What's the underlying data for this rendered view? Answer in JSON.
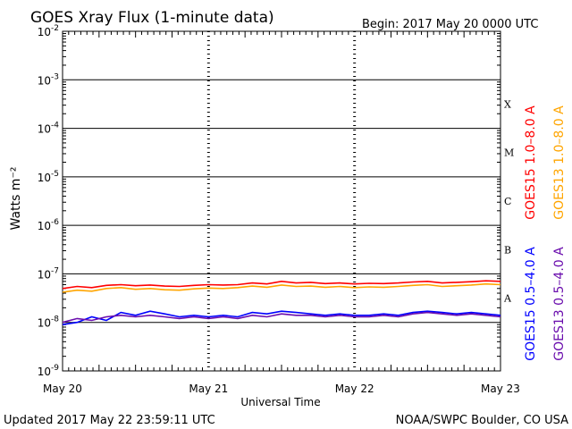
{
  "header": {
    "title": "GOES Xray Flux (1-minute data)",
    "begin": "Begin:  2017 May 20 0000 UTC"
  },
  "footer": {
    "updated": "Updated 2017 May 22 23:59:11 UTC",
    "credit": "NOAA/SWPC Boulder, CO USA"
  },
  "chart_data": {
    "type": "line",
    "xlabel": "Universal Time",
    "ylabel": "Watts m⁻²",
    "x_ticks": [
      "May 20",
      "May 21",
      "May 22",
      "May 23"
    ],
    "y_scale": "log",
    "ylim": [
      1e-09,
      0.01
    ],
    "y_ticks": [
      {
        "base": "10",
        "exp": "-2",
        "value": 0.01
      },
      {
        "base": "10",
        "exp": "-3",
        "value": 0.001
      },
      {
        "base": "10",
        "exp": "-4",
        "value": 0.0001
      },
      {
        "base": "10",
        "exp": "-5",
        "value": 1e-05
      },
      {
        "base": "10",
        "exp": "-6",
        "value": 1e-06
      },
      {
        "base": "10",
        "exp": "-7",
        "value": 1e-07
      },
      {
        "base": "10",
        "exp": "-8",
        "value": 1e-08
      },
      {
        "base": "10",
        "exp": "-9",
        "value": 1e-09
      }
    ],
    "flare_classes": [
      {
        "label": "X",
        "value": 0.0001
      },
      {
        "label": "M",
        "value": 1e-05
      },
      {
        "label": "C",
        "value": 1e-06
      },
      {
        "label": "B",
        "value": 1e-07
      },
      {
        "label": "A",
        "value": 1e-08
      }
    ],
    "series": [
      {
        "name": "GOES15 1.0–8.0 A",
        "color": "#ff0000",
        "x": [
          0,
          0.1,
          0.2,
          0.3,
          0.4,
          0.5,
          0.6,
          0.7,
          0.8,
          0.9,
          1.0,
          1.1,
          1.2,
          1.3,
          1.4,
          1.5,
          1.6,
          1.7,
          1.8,
          1.9,
          2.0,
          2.1,
          2.2,
          2.3,
          2.4,
          2.5,
          2.6,
          2.7,
          2.8,
          2.9,
          3.0
        ],
        "y": [
          5e-08,
          5.5e-08,
          5.2e-08,
          5.8e-08,
          6e-08,
          5.7e-08,
          5.9e-08,
          5.6e-08,
          5.5e-08,
          5.8e-08,
          6e-08,
          5.9e-08,
          6e-08,
          6.5e-08,
          6.2e-08,
          7e-08,
          6.5e-08,
          6.7e-08,
          6.3e-08,
          6.5e-08,
          6.2e-08,
          6.4e-08,
          6.3e-08,
          6.5e-08,
          6.8e-08,
          7e-08,
          6.5e-08,
          6.7e-08,
          6.9e-08,
          7.2e-08,
          7e-08
        ]
      },
      {
        "name": "GOES13 1.0–8.0 A",
        "color": "#ffa500",
        "x": [
          0,
          0.1,
          0.2,
          0.3,
          0.4,
          0.5,
          0.6,
          0.7,
          0.8,
          0.9,
          1.0,
          1.1,
          1.2,
          1.3,
          1.4,
          1.5,
          1.6,
          1.7,
          1.8,
          1.9,
          2.0,
          2.1,
          2.2,
          2.3,
          2.4,
          2.5,
          2.6,
          2.7,
          2.8,
          2.9,
          3.0
        ],
        "y": [
          4.2e-08,
          4.6e-08,
          4.4e-08,
          5e-08,
          5.2e-08,
          4.8e-08,
          5e-08,
          4.7e-08,
          4.6e-08,
          4.9e-08,
          5.1e-08,
          5e-08,
          5.2e-08,
          5.6e-08,
          5.3e-08,
          5.9e-08,
          5.5e-08,
          5.6e-08,
          5.3e-08,
          5.5e-08,
          5.2e-08,
          5.4e-08,
          5.3e-08,
          5.5e-08,
          5.8e-08,
          6e-08,
          5.5e-08,
          5.7e-08,
          5.9e-08,
          6.2e-08,
          6e-08
        ]
      },
      {
        "name": "GOES15 0.5–4.0 A",
        "color": "#0000ff",
        "x": [
          0,
          0.1,
          0.2,
          0.3,
          0.4,
          0.5,
          0.6,
          0.7,
          0.8,
          0.9,
          1.0,
          1.1,
          1.2,
          1.3,
          1.4,
          1.5,
          1.6,
          1.7,
          1.8,
          1.9,
          2.0,
          2.1,
          2.2,
          2.3,
          2.4,
          2.5,
          2.6,
          2.7,
          2.8,
          2.9,
          3.0
        ],
        "y": [
          9e-09,
          1e-08,
          1.3e-08,
          1.1e-08,
          1.6e-08,
          1.4e-08,
          1.7e-08,
          1.5e-08,
          1.3e-08,
          1.4e-08,
          1.3e-08,
          1.4e-08,
          1.3e-08,
          1.6e-08,
          1.5e-08,
          1.7e-08,
          1.6e-08,
          1.5e-08,
          1.4e-08,
          1.5e-08,
          1.4e-08,
          1.4e-08,
          1.5e-08,
          1.4e-08,
          1.6e-08,
          1.7e-08,
          1.6e-08,
          1.5e-08,
          1.6e-08,
          1.5e-08,
          1.4e-08
        ]
      },
      {
        "name": "GOES13 0.5–4.0 A",
        "color": "#6a0dad",
        "x": [
          0,
          0.1,
          0.2,
          0.3,
          0.4,
          0.5,
          0.6,
          0.7,
          0.8,
          0.9,
          1.0,
          1.1,
          1.2,
          1.3,
          1.4,
          1.5,
          1.6,
          1.7,
          1.8,
          1.9,
          2.0,
          2.1,
          2.2,
          2.3,
          2.4,
          2.5,
          2.6,
          2.7,
          2.8,
          2.9,
          3.0
        ],
        "y": [
          1e-08,
          1.2e-08,
          1.1e-08,
          1.3e-08,
          1.4e-08,
          1.3e-08,
          1.4e-08,
          1.3e-08,
          1.2e-08,
          1.3e-08,
          1.2e-08,
          1.3e-08,
          1.2e-08,
          1.4e-08,
          1.3e-08,
          1.5e-08,
          1.4e-08,
          1.4e-08,
          1.3e-08,
          1.4e-08,
          1.3e-08,
          1.3e-08,
          1.4e-08,
          1.3e-08,
          1.5e-08,
          1.6e-08,
          1.5e-08,
          1.4e-08,
          1.5e-08,
          1.4e-08,
          1.3e-08
        ]
      }
    ]
  }
}
